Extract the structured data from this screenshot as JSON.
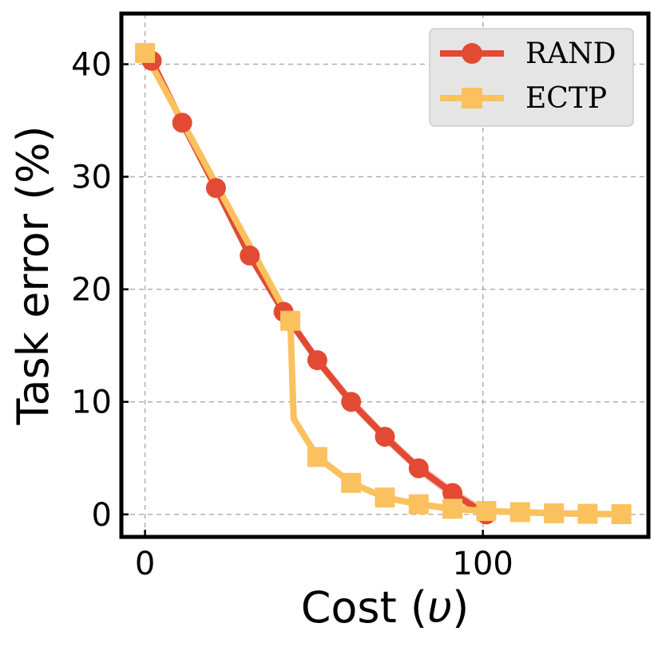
{
  "chart_data": {
    "type": "line",
    "title": "",
    "xlabel_prefix": "Cost (",
    "xlabel_symbol": "υ",
    "xlabel_suffix": ")",
    "ylabel": "Task error (%)",
    "xlim": [
      -7,
      149
    ],
    "ylim": [
      -2,
      44.5
    ],
    "xticks": [
      0,
      100
    ],
    "yticks": [
      0,
      10,
      20,
      30,
      40
    ],
    "xtick_labels": [
      "0",
      "100"
    ],
    "ytick_labels": [
      "0",
      "10",
      "20",
      "30",
      "40"
    ],
    "grid": true,
    "legend_position": "top-right",
    "series": [
      {
        "name": "RAND",
        "marker": "circle",
        "color": "#e24a33",
        "band": 0.5,
        "x": [
          2,
          11,
          21,
          31,
          41,
          51,
          61,
          71,
          81,
          91,
          101
        ],
        "y": [
          40.3,
          34.8,
          29.0,
          23.0,
          18.0,
          13.7,
          10.0,
          6.9,
          4.1,
          1.9,
          0.0
        ]
      },
      {
        "name": "ECTP",
        "marker": "square",
        "color": "#fbc15e",
        "band": 0.3,
        "x": [
          0,
          43,
          44,
          51,
          61,
          71,
          81,
          91,
          101,
          111,
          121,
          131,
          141
        ],
        "y": [
          41.0,
          17.2,
          8.5,
          5.1,
          2.8,
          1.5,
          0.9,
          0.5,
          0.3,
          0.2,
          0.1,
          0.05,
          0.02
        ],
        "marker_mask": [
          1,
          1,
          0,
          1,
          1,
          1,
          1,
          1,
          1,
          1,
          1,
          1,
          1
        ]
      }
    ]
  }
}
